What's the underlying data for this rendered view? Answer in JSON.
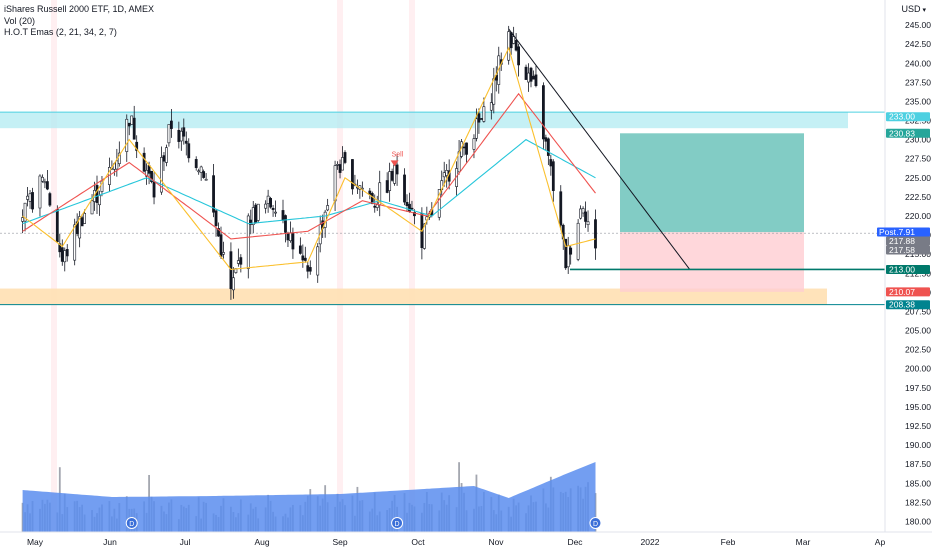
{
  "legend": {
    "symbol": "iShares Russell 2000 ETF, 1D, AMEX",
    "volume": "Vol (20)",
    "indicator": "H.O.T Emas (2, 21, 34, 2, 7)"
  },
  "currency_label": "USD",
  "price_axis": {
    "min": 178.75,
    "max": 247.5,
    "ticks": [
      "245.00",
      "242.50",
      "240.00",
      "237.50",
      "235.00",
      "232.50",
      "230.00",
      "227.50",
      "225.00",
      "222.50",
      "220.00",
      "217.50",
      "215.00",
      "212.50",
      "210.00",
      "207.50",
      "205.00",
      "202.50",
      "200.00",
      "197.50",
      "195.00",
      "192.50",
      "190.00",
      "187.50",
      "185.00",
      "182.50",
      "180.00"
    ]
  },
  "time_axis": [
    "May",
    "Jun",
    "Jul",
    "Aug",
    "Sep",
    "Oct",
    "Nov",
    "Dec",
    "2022",
    "Feb",
    "Mar",
    "Ap"
  ],
  "price_labels": [
    {
      "text": "233.00",
      "value": 233.0,
      "color": "#4dd0e1"
    },
    {
      "text": "230.83",
      "value": 230.83,
      "color": "#26a69a"
    },
    {
      "text": "217.91",
      "value": 217.91,
      "color": "#2962ff",
      "tag": "Post"
    },
    {
      "text": "217.88",
      "value": 217.88,
      "color": "#787b86"
    },
    {
      "text": "217.58",
      "value": 217.58,
      "color": "#787b86"
    },
    {
      "text": "213.00",
      "value": 213.0,
      "color": "#00796b"
    },
    {
      "text": "210.07",
      "value": 210.07,
      "color": "#ef5350"
    },
    {
      "text": "208.38",
      "value": 208.38,
      "color": "#00838f"
    }
  ],
  "chart_annotations": {
    "sell_label": "Sell",
    "dividend_marker": "D"
  },
  "colors": {
    "up": "#26a69a",
    "candle": "#131722",
    "ema_fast": "#fbc02d",
    "ema_mid": "#ef5350",
    "ema_slow": "#26c6da",
    "volume_area": "#5b8def",
    "zone_cyan": "#b2ebf2",
    "zone_orange": "#ffe0b2",
    "target": "#4db6ac",
    "stop": "#ffcdd2"
  },
  "chart_data": {
    "type": "candlestick",
    "title": "iShares Russell 2000 ETF, 1D, AMEX",
    "ylim": [
      178.75,
      247.5
    ],
    "x_range": [
      "May 2021",
      "Apr 2022"
    ],
    "price_path": [
      {
        "date": "2021-04-26",
        "close": 220.0
      },
      {
        "date": "2021-05-05",
        "close": 225.0
      },
      {
        "date": "2021-05-12",
        "close": 214.0
      },
      {
        "date": "2021-05-20",
        "close": 220.0
      },
      {
        "date": "2021-06-01",
        "close": 226.0
      },
      {
        "date": "2021-06-08",
        "close": 233.0
      },
      {
        "date": "2021-06-18",
        "close": 223.0
      },
      {
        "date": "2021-06-25",
        "close": 232.0
      },
      {
        "date": "2021-07-08",
        "close": 226.0
      },
      {
        "date": "2021-07-19",
        "close": 210.0
      },
      {
        "date": "2021-07-27",
        "close": 220.0
      },
      {
        "date": "2021-08-06",
        "close": 222.0
      },
      {
        "date": "2021-08-19",
        "close": 212.0
      },
      {
        "date": "2021-08-31",
        "close": 227.0
      },
      {
        "date": "2021-09-15",
        "close": 222.0
      },
      {
        "date": "2021-09-24",
        "close": 226.0
      },
      {
        "date": "2021-10-04",
        "close": 217.0
      },
      {
        "date": "2021-10-15",
        "close": 226.0
      },
      {
        "date": "2021-10-29",
        "close": 233.0
      },
      {
        "date": "2021-11-08",
        "close": 244.0
      },
      {
        "date": "2021-11-19",
        "close": 236.0
      },
      {
        "date": "2021-11-26",
        "close": 224.0
      },
      {
        "date": "2021-12-01",
        "close": 214.0
      },
      {
        "date": "2021-12-08",
        "close": 222.0
      },
      {
        "date": "2021-12-13",
        "close": 215.0
      }
    ],
    "ema_fast_path": [
      {
        "date": "2021-04-26",
        "value": 220.0
      },
      {
        "date": "2021-05-12",
        "value": 216.0
      },
      {
        "date": "2021-06-08",
        "value": 230.0
      },
      {
        "date": "2021-07-19",
        "value": 213.0
      },
      {
        "date": "2021-08-19",
        "value": 214.0
      },
      {
        "date": "2021-09-03",
        "value": 225.0
      },
      {
        "date": "2021-10-04",
        "value": 218.0
      },
      {
        "date": "2021-11-08",
        "value": 242.0
      },
      {
        "date": "2021-12-01",
        "value": 216.0
      },
      {
        "date": "2021-12-13",
        "value": 217.0
      }
    ],
    "ema_mid_path": [
      {
        "date": "2021-04-26",
        "value": 218.0
      },
      {
        "date": "2021-06-08",
        "value": 227.0
      },
      {
        "date": "2021-07-19",
        "value": 217.0
      },
      {
        "date": "2021-08-19",
        "value": 218.0
      },
      {
        "date": "2021-09-10",
        "value": 222.0
      },
      {
        "date": "2021-10-06",
        "value": 220.0
      },
      {
        "date": "2021-11-12",
        "value": 236.0
      },
      {
        "date": "2021-12-13",
        "value": 223.0
      }
    ],
    "ema_slow_path": [
      {
        "date": "2021-04-26",
        "value": 219.0
      },
      {
        "date": "2021-06-15",
        "value": 225.0
      },
      {
        "date": "2021-07-26",
        "value": 219.0
      },
      {
        "date": "2021-08-26",
        "value": 220.0
      },
      {
        "date": "2021-09-17",
        "value": 222.0
      },
      {
        "date": "2021-10-08",
        "value": 220.0
      },
      {
        "date": "2021-11-15",
        "value": 230.0
      },
      {
        "date": "2021-12-13",
        "value": 225.0
      }
    ],
    "volume_average_path": [
      {
        "date": "2021-04-26",
        "value": 0.42
      },
      {
        "date": "2021-06-01",
        "value": 0.35
      },
      {
        "date": "2021-07-12",
        "value": 0.36
      },
      {
        "date": "2021-09-01",
        "value": 0.38
      },
      {
        "date": "2021-10-25",
        "value": 0.46
      },
      {
        "date": "2021-11-08",
        "value": 0.34
      },
      {
        "date": "2021-12-01",
        "value": 0.58
      },
      {
        "date": "2021-12-13",
        "value": 0.7
      }
    ],
    "levels": [
      {
        "name": "resistance_zone",
        "from": 231.5,
        "to": 233.6
      },
      {
        "name": "support_zone",
        "from": 208.4,
        "to": 210.5
      },
      {
        "name": "target",
        "value": 230.83
      },
      {
        "name": "entry",
        "value": 217.88
      },
      {
        "name": "stop",
        "value": 210.07
      },
      {
        "name": "support_line",
        "value": 213.0
      }
    ],
    "trendline": {
      "from": {
        "date": "2021-11-08",
        "value": 244.5
      },
      "to": {
        "date": "2022-01-20",
        "value": 213.0
      }
    }
  }
}
